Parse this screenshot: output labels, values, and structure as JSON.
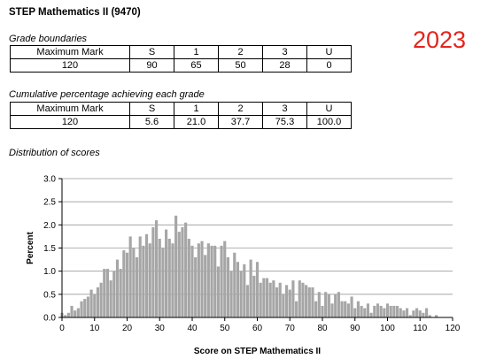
{
  "title": "STEP Mathematics II (9470)",
  "year": "2023",
  "grade_boundaries": {
    "caption": "Grade boundaries",
    "headers": [
      "Maximum Mark",
      "S",
      "1",
      "2",
      "3",
      "U"
    ],
    "values": [
      "120",
      "90",
      "65",
      "50",
      "28",
      "0"
    ]
  },
  "cumulative": {
    "caption": "Cumulative percentage achieving each grade",
    "headers": [
      "Maximum Mark",
      "S",
      "1",
      "2",
      "3",
      "U"
    ],
    "values": [
      "120",
      "5.6",
      "21.0",
      "37.7",
      "75.3",
      "100.0"
    ]
  },
  "distribution_caption": "Distribution of scores",
  "chart_data": {
    "type": "bar",
    "xlabel": "Score on STEP Mathematics II",
    "ylabel": "Percent",
    "xlim": [
      0,
      120
    ],
    "ylim": [
      0,
      3.0
    ],
    "xticks": [
      "0",
      "10",
      "20",
      "30",
      "40",
      "50",
      "60",
      "70",
      "80",
      "90",
      "100",
      "110",
      "120"
    ],
    "yticks": [
      "0.0",
      "0.5",
      "1.0",
      "1.5",
      "2.0",
      "2.5",
      "3.0"
    ],
    "grid": true,
    "bar_color": "#a6a6a6",
    "x": [
      0,
      1,
      2,
      3,
      4,
      5,
      6,
      7,
      8,
      9,
      10,
      11,
      12,
      13,
      14,
      15,
      16,
      17,
      18,
      19,
      20,
      21,
      22,
      23,
      24,
      25,
      26,
      27,
      28,
      29,
      30,
      31,
      32,
      33,
      34,
      35,
      36,
      37,
      38,
      39,
      40,
      41,
      42,
      43,
      44,
      45,
      46,
      47,
      48,
      49,
      50,
      51,
      52,
      53,
      54,
      55,
      56,
      57,
      58,
      59,
      60,
      61,
      62,
      63,
      64,
      65,
      66,
      67,
      68,
      69,
      70,
      71,
      72,
      73,
      74,
      75,
      76,
      77,
      78,
      79,
      80,
      81,
      82,
      83,
      84,
      85,
      86,
      87,
      88,
      89,
      90,
      91,
      92,
      93,
      94,
      95,
      96,
      97,
      98,
      99,
      100,
      101,
      102,
      103,
      104,
      105,
      106,
      107,
      108,
      109,
      110,
      111,
      112,
      113,
      114,
      115,
      116,
      117,
      118,
      119,
      120
    ],
    "values": [
      0.1,
      0.05,
      0.1,
      0.25,
      0.15,
      0.2,
      0.35,
      0.4,
      0.45,
      0.6,
      0.5,
      0.65,
      0.75,
      1.05,
      1.05,
      0.8,
      1.0,
      1.25,
      1.05,
      1.45,
      1.4,
      1.75,
      1.5,
      1.3,
      1.75,
      1.55,
      1.8,
      1.6,
      1.95,
      2.1,
      1.7,
      1.5,
      1.9,
      1.7,
      1.6,
      2.2,
      1.85,
      1.95,
      2.05,
      1.7,
      1.55,
      1.3,
      1.6,
      1.65,
      1.35,
      1.6,
      1.55,
      1.55,
      1.1,
      1.55,
      1.65,
      1.3,
      1.0,
      1.4,
      1.2,
      1.0,
      1.15,
      0.7,
      1.25,
      0.9,
      1.2,
      0.75,
      0.85,
      0.85,
      0.75,
      0.8,
      0.65,
      0.75,
      0.5,
      0.7,
      0.6,
      0.8,
      0.35,
      0.8,
      0.75,
      0.7,
      0.65,
      0.65,
      0.35,
      0.55,
      0.25,
      0.55,
      0.5,
      0.3,
      0.5,
      0.55,
      0.35,
      0.35,
      0.3,
      0.45,
      0.2,
      0.35,
      0.25,
      0.2,
      0.3,
      0.1,
      0.25,
      0.3,
      0.25,
      0.2,
      0.3,
      0.25,
      0.25,
      0.25,
      0.2,
      0.15,
      0.2,
      0.05,
      0.15,
      0.2,
      0.15,
      0.1,
      0.2,
      0.05,
      0.0,
      0.05,
      0.0,
      0.0,
      0.0,
      0.0,
      0.0
    ]
  }
}
